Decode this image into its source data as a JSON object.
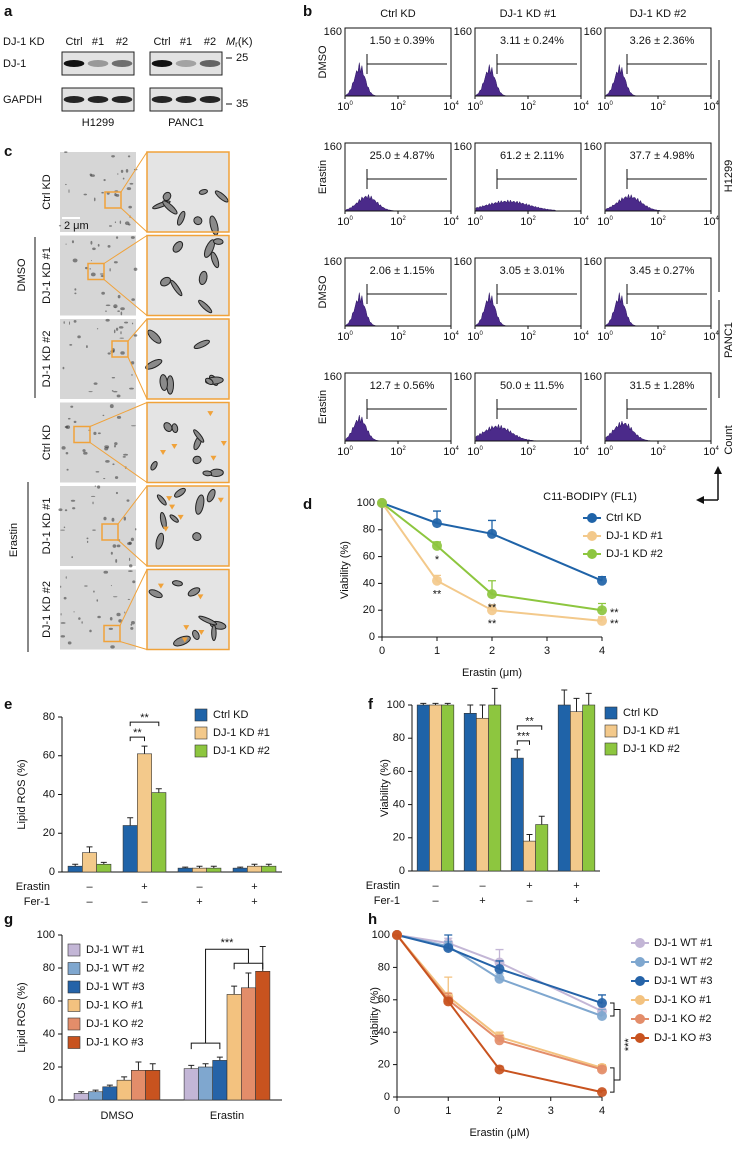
{
  "panel_labels": [
    "a",
    "b",
    "c",
    "d",
    "e",
    "f",
    "g",
    "h"
  ],
  "blot": {
    "group_label": "DJ-1 KD",
    "lanes": [
      "Ctrl",
      "#1",
      "#2"
    ],
    "mr": {
      "symbol": "M",
      "sub": "r",
      "unit": "(K)"
    },
    "markers": [
      "25",
      "35"
    ],
    "proteins": [
      "DJ-1",
      "GAPDH"
    ],
    "cell_lines": [
      "H1299",
      "PANC1"
    ]
  },
  "flow": {
    "columns": [
      "Ctrl KD",
      "DJ-1 KD #1",
      "DJ-1 KD #2"
    ],
    "rows": [
      "DMSO",
      "Erastin",
      "DMSO",
      "Erastin"
    ],
    "cell_lines": [
      "H1299",
      "PANC1"
    ],
    "percentages": [
      [
        "1.50 ± 0.39%",
        "3.11 ± 0.24%",
        "3.26 ± 2.36%"
      ],
      [
        "25.0 ± 4.87%",
        "61.2 ± 2.11%",
        "37.7 ± 4.98%"
      ],
      [
        "2.06 ± 1.15%",
        "3.05 ± 3.01%",
        "3.45 ± 0.27%"
      ],
      [
        "12.7 ± 0.56%",
        "50.0 ± 11.5%",
        "31.5 ± 1.28%"
      ]
    ],
    "count_tick": "160",
    "x_ticks": [
      {
        "base": "10",
        "exp": "0"
      },
      {
        "base": "10",
        "exp": "2"
      },
      {
        "base": "10",
        "exp": "4"
      }
    ],
    "x_label": "C11-BODIPY (FL1)",
    "y_label": "Count"
  },
  "em": {
    "treatments": [
      "DMSO",
      "Erastin"
    ],
    "rows": [
      "Ctrl KD",
      "DJ-1 KD #1",
      "DJ-1 KD #2"
    ],
    "scale_bar": "2 μm"
  },
  "chart_data": [
    {
      "type": "line",
      "x": [
        0,
        1,
        2,
        4
      ],
      "xlim": [
        0,
        4
      ],
      "xticks": [
        0,
        1,
        2,
        3,
        4
      ],
      "ylim": [
        0,
        100
      ],
      "yticks": [
        0,
        20,
        40,
        60,
        80,
        100
      ],
      "xlabel": "Erastin (μm)",
      "ylabel": "Viability (%)",
      "series": [
        {
          "name": "Ctrl KD",
          "color": "#1f63a8",
          "values": [
            100,
            85,
            77,
            42
          ],
          "errors": [
            0,
            9,
            10,
            3
          ]
        },
        {
          "name": "DJ-1 KD #1",
          "color": "#f3c98b",
          "values": [
            100,
            42,
            20,
            12
          ],
          "errors": [
            0,
            4,
            4,
            3
          ],
          "significance": [
            null,
            "**",
            "**",
            "**"
          ]
        },
        {
          "name": "DJ-1 KD #2",
          "color": "#8dc63f",
          "values": [
            100,
            68,
            32,
            20
          ],
          "errors": [
            0,
            3,
            10,
            5
          ],
          "significance": [
            null,
            "*",
            "**",
            "**"
          ]
        }
      ]
    },
    {
      "type": "bar",
      "categories": [
        null,
        null,
        null,
        null
      ],
      "conditions": [
        {
          "name": "Erastin",
          "signs": [
            "–",
            "+",
            "–",
            "+"
          ]
        },
        {
          "name": "Fer-1",
          "signs": [
            "–",
            "–",
            "+",
            "+"
          ]
        }
      ],
      "ylim": [
        0,
        80
      ],
      "yticks": [
        0,
        20,
        40,
        60,
        80
      ],
      "ylabel": "Lipid ROS (%)",
      "series": [
        {
          "name": "Ctrl KD",
          "color": "#1f63a8",
          "values": [
            3,
            24,
            2,
            2
          ],
          "errors": [
            1,
            4,
            0.5,
            0.5
          ]
        },
        {
          "name": "DJ-1 KD #1",
          "color": "#f3c98b",
          "values": [
            10,
            61,
            2,
            3
          ],
          "errors": [
            3,
            4,
            1,
            1
          ]
        },
        {
          "name": "DJ-1 KD #2",
          "color": "#8dc63f",
          "values": [
            4,
            41,
            2,
            3
          ],
          "errors": [
            1,
            2,
            1,
            1
          ]
        }
      ],
      "annotations": [
        "**",
        "**"
      ]
    },
    {
      "type": "bar",
      "categories": [
        null,
        null,
        null,
        null
      ],
      "conditions": [
        {
          "name": "Erastin",
          "signs": [
            "–",
            "–",
            "+",
            "+"
          ]
        },
        {
          "name": "Fer-1",
          "signs": [
            "–",
            "+",
            "–",
            "+"
          ]
        }
      ],
      "ylim": [
        0,
        100
      ],
      "yticks": [
        0,
        20,
        40,
        60,
        80,
        100
      ],
      "ylabel": "Viability (%)",
      "series": [
        {
          "name": "Ctrl KD",
          "color": "#1f63a8",
          "values": [
            100,
            95,
            68,
            100
          ],
          "errors": [
            1,
            5,
            5,
            9
          ]
        },
        {
          "name": "DJ-1 KD #1",
          "color": "#f3c98b",
          "values": [
            100,
            92,
            18,
            96
          ],
          "errors": [
            1,
            8,
            4,
            8
          ]
        },
        {
          "name": "DJ-1 KD #2",
          "color": "#8dc63f",
          "values": [
            100,
            100,
            28,
            100
          ],
          "errors": [
            1,
            10,
            5,
            7
          ]
        }
      ],
      "annotations": [
        "**",
        "***"
      ]
    },
    {
      "type": "bar",
      "categories": [
        "DMSO",
        "Erastin"
      ],
      "ylim": [
        0,
        100
      ],
      "yticks": [
        0,
        20,
        40,
        60,
        80,
        100
      ],
      "ylabel": "Lipid ROS (%)",
      "series": [
        {
          "name": "DJ-1 WT #1",
          "color": "#c3b6d6",
          "values": [
            4,
            19
          ],
          "errors": [
            1,
            2
          ]
        },
        {
          "name": "DJ-1 WT #2",
          "color": "#7fa7cf",
          "values": [
            5,
            20
          ],
          "errors": [
            1,
            2
          ]
        },
        {
          "name": "DJ-1 WT #3",
          "color": "#2563a8",
          "values": [
            8,
            24
          ],
          "errors": [
            1,
            2
          ]
        },
        {
          "name": "DJ-1 KO #1",
          "color": "#f3c27f",
          "values": [
            12,
            64
          ],
          "errors": [
            2,
            5
          ]
        },
        {
          "name": "DJ-1 KO #2",
          "color": "#e38d6a",
          "values": [
            18,
            68
          ],
          "errors": [
            5,
            9
          ]
        },
        {
          "name": "DJ-1 KO #3",
          "color": "#c8531f",
          "values": [
            18,
            78
          ],
          "errors": [
            4,
            15
          ]
        }
      ],
      "annotations": [
        "***"
      ]
    },
    {
      "type": "line",
      "x": [
        0,
        1,
        2,
        4
      ],
      "xlim": [
        0,
        4
      ],
      "xticks": [
        0,
        1,
        2,
        3,
        4
      ],
      "ylim": [
        0,
        100
      ],
      "yticks": [
        0,
        20,
        40,
        60,
        80,
        100
      ],
      "xlabel": "Erastin (μM)",
      "ylabel": "Viability (%)",
      "series": [
        {
          "name": "DJ-1 WT #1",
          "color": "#c3b6d6",
          "values": [
            100,
            95,
            83,
            53
          ],
          "errors": [
            0,
            3,
            8,
            5
          ]
        },
        {
          "name": "DJ-1 WT #2",
          "color": "#7fa7cf",
          "values": [
            100,
            93,
            73,
            50
          ],
          "errors": [
            0,
            3,
            3,
            4
          ]
        },
        {
          "name": "DJ-1 WT #3",
          "color": "#2563a8",
          "values": [
            100,
            92,
            79,
            58
          ],
          "errors": [
            0,
            8,
            5,
            5
          ]
        },
        {
          "name": "DJ-1 KO #1",
          "color": "#f3c27f",
          "values": [
            100,
            62,
            37,
            18
          ],
          "errors": [
            0,
            12,
            3,
            2
          ]
        },
        {
          "name": "DJ-1 KO #2",
          "color": "#e38d6a",
          "values": [
            100,
            60,
            35,
            17
          ],
          "errors": [
            0,
            4,
            3,
            2
          ]
        },
        {
          "name": "DJ-1 KO #3",
          "color": "#c8531f",
          "values": [
            100,
            59,
            17,
            3
          ],
          "errors": [
            0,
            2,
            2,
            1
          ]
        }
      ],
      "annotations": [
        "***"
      ]
    }
  ]
}
